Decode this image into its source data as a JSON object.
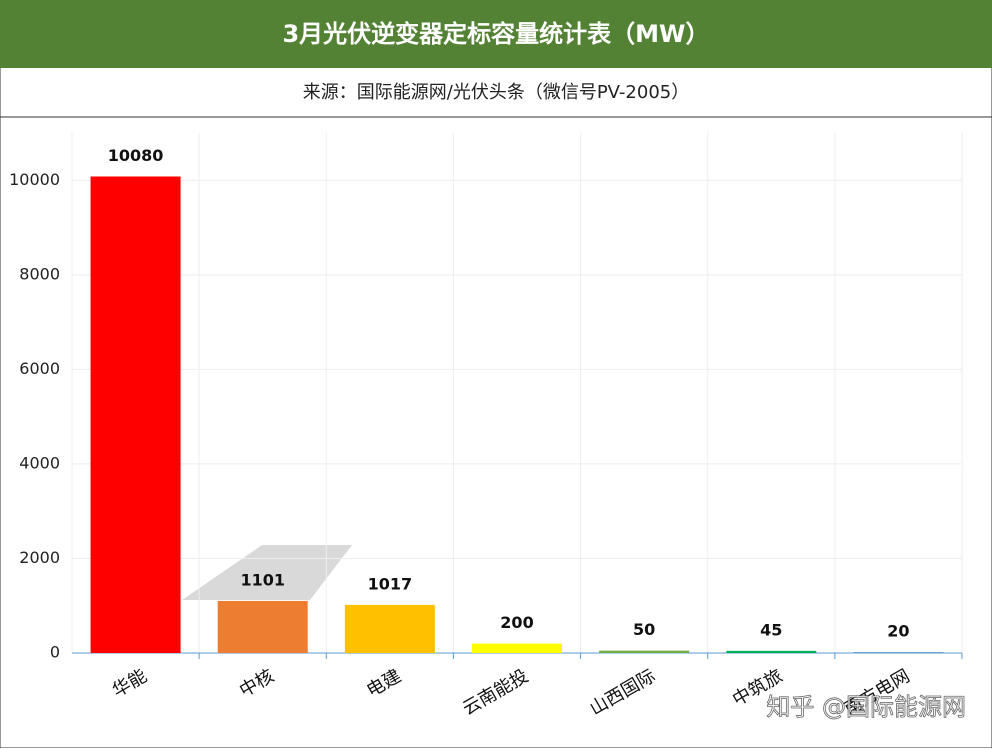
{
  "chart_data": {
    "type": "bar",
    "title": "3月光伏逆变器定标容量统计表（MW）",
    "subtitle": "来源：国际能源网/光伏头条（微信号PV-2005）",
    "categories": [
      "华能",
      "中核",
      "电建",
      "云南能投",
      "山西国际",
      "中筑旅",
      "南方电网"
    ],
    "values": [
      10080,
      1101,
      1017,
      200,
      50,
      45,
      20
    ],
    "colors": [
      "#ff0000",
      "#ed7d31",
      "#ffc000",
      "#ffff00",
      "#70ad47",
      "#00b050",
      "#5b9bd5"
    ],
    "ylim": [
      0,
      11000
    ],
    "yticks": [
      0,
      2000,
      4000,
      6000,
      8000,
      10000
    ],
    "grid": true,
    "watermark": "知乎 @国际能源网"
  }
}
